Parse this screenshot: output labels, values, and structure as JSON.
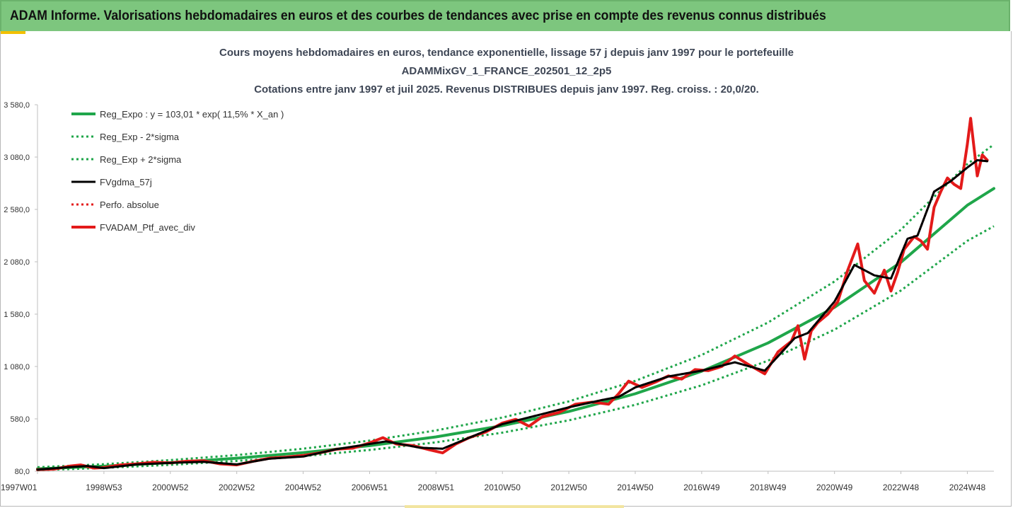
{
  "header": {
    "title": "ADAM Informe. Valorisations hebdomadaires en euros et des courbes de tendances avec prise en compte des revenus connus distribués"
  },
  "chart_data": {
    "type": "line",
    "title_lines": [
      "Cours moyens hebdomadaires  en euros, tendance exponentielle, lissage 57 j depuis janv 1997 pour le portefeuille",
      "ADAMMixGV_1_FRANCE_202501_12_2p5",
      "Cotations  entre janv 1997 et juil 2025. Revenus DISTRIBUES depuis janv 1997. Reg. croiss. : 20,0/20."
    ],
    "xlabel": "",
    "ylabel": "",
    "ylim": [
      80,
      3580
    ],
    "xlim": [
      1997.0,
      2025.8
    ],
    "yticks": [
      {
        "value": 80,
        "label": "80,0"
      },
      {
        "value": 580,
        "label": "580,0"
      },
      {
        "value": 1080,
        "label": "1 080,0"
      },
      {
        "value": 1580,
        "label": "1 580,0"
      },
      {
        "value": 2080,
        "label": "2 080,0"
      },
      {
        "value": 2580,
        "label": "2 580,0"
      },
      {
        "value": 3080,
        "label": "3 080,0"
      },
      {
        "value": 3580,
        "label": "3 580,0"
      }
    ],
    "xticks": [
      {
        "value": 1997.0,
        "label": "1997W01"
      },
      {
        "value": 1999.0,
        "label": "1998W53"
      },
      {
        "value": 2001.0,
        "label": "2000W52"
      },
      {
        "value": 2003.0,
        "label": "2002W52"
      },
      {
        "value": 2005.0,
        "label": "2004W52"
      },
      {
        "value": 2007.0,
        "label": "2006W51"
      },
      {
        "value": 2009.0,
        "label": "2008W51"
      },
      {
        "value": 2011.0,
        "label": "2010W50"
      },
      {
        "value": 2013.0,
        "label": "2012W50"
      },
      {
        "value": 2015.0,
        "label": "2014W50"
      },
      {
        "value": 2017.0,
        "label": "2016W49"
      },
      {
        "value": 2019.0,
        "label": "2018W49"
      },
      {
        "value": 2021.0,
        "label": "2020W49"
      },
      {
        "value": 2023.0,
        "label": "2022W48"
      },
      {
        "value": 2025.0,
        "label": "2024W48"
      }
    ],
    "grid": false,
    "legend_position": "top-left",
    "series": [
      {
        "name": "Reg_Expo : y = 103,01 * exp( 11,5% *  X_an )",
        "color": "#1fa64a",
        "dash": "solid",
        "width": 4,
        "x": [
          1997.0,
          1999.0,
          2001.0,
          2003.0,
          2005.0,
          2007.0,
          2009.0,
          2011.0,
          2013.0,
          2015.0,
          2017.0,
          2019.0,
          2021.0,
          2023.0,
          2025.0,
          2025.8
        ],
        "y": [
          103,
          128,
          162,
          204,
          257,
          324,
          408,
          515,
          650,
          820,
          1035,
          1305,
          1645,
          2075,
          2620,
          2780
        ]
      },
      {
        "name": "Reg_Exp - 2*sigma",
        "color": "#1fa64a",
        "dash": "dotted",
        "width": 3,
        "x": [
          1997.0,
          1999.0,
          2001.0,
          2003.0,
          2005.0,
          2007.0,
          2009.0,
          2011.0,
          2013.0,
          2015.0,
          2017.0,
          2019.0,
          2021.0,
          2023.0,
          2025.0,
          2025.8
        ],
        "y": [
          90,
          112,
          141,
          178,
          224,
          283,
          356,
          448,
          566,
          714,
          900,
          1136,
          1432,
          1806,
          2280,
          2420
        ]
      },
      {
        "name": "Reg_Exp + 2*sigma",
        "color": "#1fa64a",
        "dash": "dotted",
        "width": 3,
        "x": [
          1997.0,
          1999.0,
          2001.0,
          2003.0,
          2005.0,
          2007.0,
          2009.0,
          2011.0,
          2013.0,
          2015.0,
          2017.0,
          2019.0,
          2021.0,
          2023.0,
          2025.0,
          2025.8
        ],
        "y": [
          118,
          147,
          186,
          234,
          295,
          372,
          469,
          592,
          747,
          943,
          1190,
          1500,
          1892,
          2387,
          3013,
          3200
        ]
      },
      {
        "name": "FVgdma_57j",
        "color": "#000000",
        "dash": "solid",
        "width": 3,
        "x": [
          1997.0,
          1998.0,
          1998.5,
          1999.0,
          2000.0,
          2001.0,
          2002.0,
          2003.0,
          2004.0,
          2005.0,
          2006.0,
          2007.0,
          2007.5,
          2008.5,
          2009.2,
          2010.0,
          2011.0,
          2012.0,
          2013.0,
          2014.0,
          2014.5,
          2015.0,
          2016.0,
          2017.0,
          2018.0,
          2018.9,
          2019.8,
          2020.2,
          2020.6,
          2021.0,
          2021.6,
          2022.2,
          2022.7,
          2023.2,
          2023.5,
          2024.0,
          2024.5,
          2025.0,
          2025.3,
          2025.6
        ],
        "y": [
          95,
          120,
          130,
          110,
          145,
          160,
          170,
          145,
          200,
          220,
          290,
          340,
          365,
          305,
          295,
          400,
          530,
          610,
          690,
          760,
          790,
          880,
          985,
          1040,
          1120,
          1040,
          1350,
          1400,
          1550,
          1700,
          2050,
          1950,
          1920,
          2300,
          2330,
          2750,
          2850,
          2980,
          3050,
          3040
        ]
      },
      {
        "name": "Perfo. absolue",
        "color": "#e31a1a",
        "dash": "dotted",
        "width": 3,
        "x": [
          1997.0,
          1998.0,
          1998.5,
          1999.0,
          2000.0,
          2001.0,
          2002.0,
          2003.0,
          2004.0,
          2005.0,
          2006.0,
          2007.0,
          2007.5,
          2008.5,
          2009.2,
          2010.0,
          2011.0,
          2012.0,
          2013.0,
          2014.0,
          2014.5,
          2015.0,
          2016.0,
          2017.0,
          2018.0,
          2018.9,
          2019.8,
          2020.2,
          2020.6,
          2021.0,
          2021.6,
          2022.2,
          2022.7,
          2023.2,
          2023.5,
          2024.0,
          2024.5,
          2025.0,
          2025.3,
          2025.6
        ],
        "y": [
          95,
          120,
          130,
          110,
          145,
          160,
          170,
          145,
          200,
          220,
          290,
          340,
          365,
          305,
          295,
          400,
          530,
          610,
          690,
          760,
          790,
          880,
          985,
          1040,
          1120,
          1040,
          1350,
          1400,
          1550,
          1700,
          2050,
          1950,
          1920,
          2300,
          2330,
          2750,
          2850,
          2980,
          3050,
          3040
        ]
      },
      {
        "name": "FVADAM_Ptf_avec_div",
        "color": "#e31a1a",
        "dash": "solid",
        "width": 4,
        "x": [
          1997.0,
          1997.5,
          1998.0,
          1998.3,
          1998.7,
          1999.0,
          1999.5,
          2000.0,
          2000.5,
          2001.0,
          2001.5,
          2002.0,
          2002.5,
          2003.0,
          2003.5,
          2004.0,
          2004.5,
          2005.0,
          2005.5,
          2006.0,
          2006.5,
          2007.0,
          2007.4,
          2007.8,
          2008.3,
          2008.8,
          2009.2,
          2009.6,
          2010.0,
          2010.5,
          2011.0,
          2011.4,
          2011.8,
          2012.2,
          2012.7,
          2013.2,
          2013.7,
          2014.2,
          2014.5,
          2014.8,
          2015.2,
          2015.6,
          2016.0,
          2016.4,
          2016.8,
          2017.2,
          2017.6,
          2018.0,
          2018.4,
          2018.9,
          2019.3,
          2019.7,
          2019.9,
          2020.1,
          2020.3,
          2020.5,
          2020.8,
          2021.1,
          2021.4,
          2021.7,
          2021.9,
          2022.2,
          2022.5,
          2022.7,
          2022.9,
          2023.1,
          2023.4,
          2023.6,
          2023.8,
          2024.0,
          2024.2,
          2024.4,
          2024.6,
          2024.8,
          2025.0,
          2025.1,
          2025.3,
          2025.45,
          2025.6
        ],
        "y": [
          95,
          100,
          130,
          140,
          110,
          115,
          140,
          150,
          165,
          160,
          175,
          180,
          150,
          140,
          175,
          205,
          215,
          230,
          255,
          290,
          300,
          350,
          400,
          340,
          325,
          285,
          255,
          340,
          400,
          455,
          540,
          575,
          510,
          600,
          640,
          720,
          740,
          720,
          820,
          940,
          880,
          930,
          990,
          960,
          1050,
          1040,
          1080,
          1180,
          1100,
          1010,
          1220,
          1320,
          1470,
          1150,
          1420,
          1500,
          1580,
          1700,
          2000,
          2250,
          1900,
          1780,
          2000,
          1800,
          1980,
          2200,
          2320,
          2280,
          2200,
          2600,
          2750,
          2880,
          2820,
          2780,
          3200,
          3450,
          2900,
          3100,
          3050
        ]
      }
    ]
  }
}
